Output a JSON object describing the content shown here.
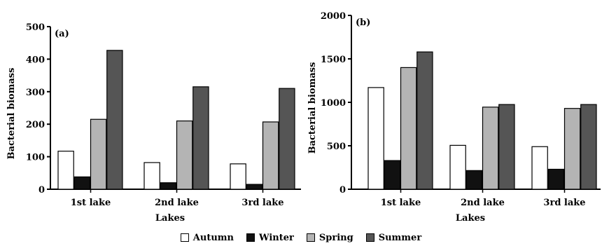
{
  "chart_data": [
    {
      "type": "bar",
      "panel_label": "(a)",
      "ylabel": "Bacterial biomass",
      "xlabel": "Lakes",
      "ylim": [
        0,
        500
      ],
      "yticks": [
        0,
        100,
        200,
        300,
        400,
        500
      ],
      "ytick_labels": [
        "0",
        "100",
        "200",
        "300",
        "400",
        "500"
      ],
      "categories": [
        "1st lake",
        "2nd lake",
        "3rd lake"
      ],
      "series": [
        {
          "name": "Autumn",
          "values": [
            117,
            82,
            78
          ]
        },
        {
          "name": "Winter",
          "values": [
            38,
            20,
            15
          ]
        },
        {
          "name": "Spring",
          "values": [
            215,
            210,
            207
          ]
        },
        {
          "name": "Summer",
          "values": [
            427,
            315,
            310
          ]
        }
      ]
    },
    {
      "type": "bar",
      "panel_label": "(b)",
      "ylabel": "Bacterial biomass",
      "xlabel": "Lakes",
      "ylim": [
        0,
        2000
      ],
      "yticks": [
        0,
        500,
        1000,
        1500,
        2000
      ],
      "ytick_labels": [
        "0",
        "500",
        "1000",
        "1500",
        "2000"
      ],
      "categories": [
        "1st lake",
        "2nd lake",
        "3rd lake"
      ],
      "series": [
        {
          "name": "Autumn",
          "values": [
            1170,
            505,
            490
          ]
        },
        {
          "name": "Winter",
          "values": [
            330,
            215,
            230
          ]
        },
        {
          "name": "Spring",
          "values": [
            1400,
            945,
            930
          ]
        },
        {
          "name": "Summer",
          "values": [
            1580,
            975,
            975
          ]
        }
      ]
    }
  ],
  "legend": {
    "placement": "bottom-center",
    "items": [
      {
        "label": "Autumn",
        "color": "#ffffff"
      },
      {
        "label": "Winter",
        "color": "#111111"
      },
      {
        "label": "Spring",
        "color": "#b4b4b4"
      },
      {
        "label": "Summer",
        "color": "#555555"
      }
    ]
  }
}
